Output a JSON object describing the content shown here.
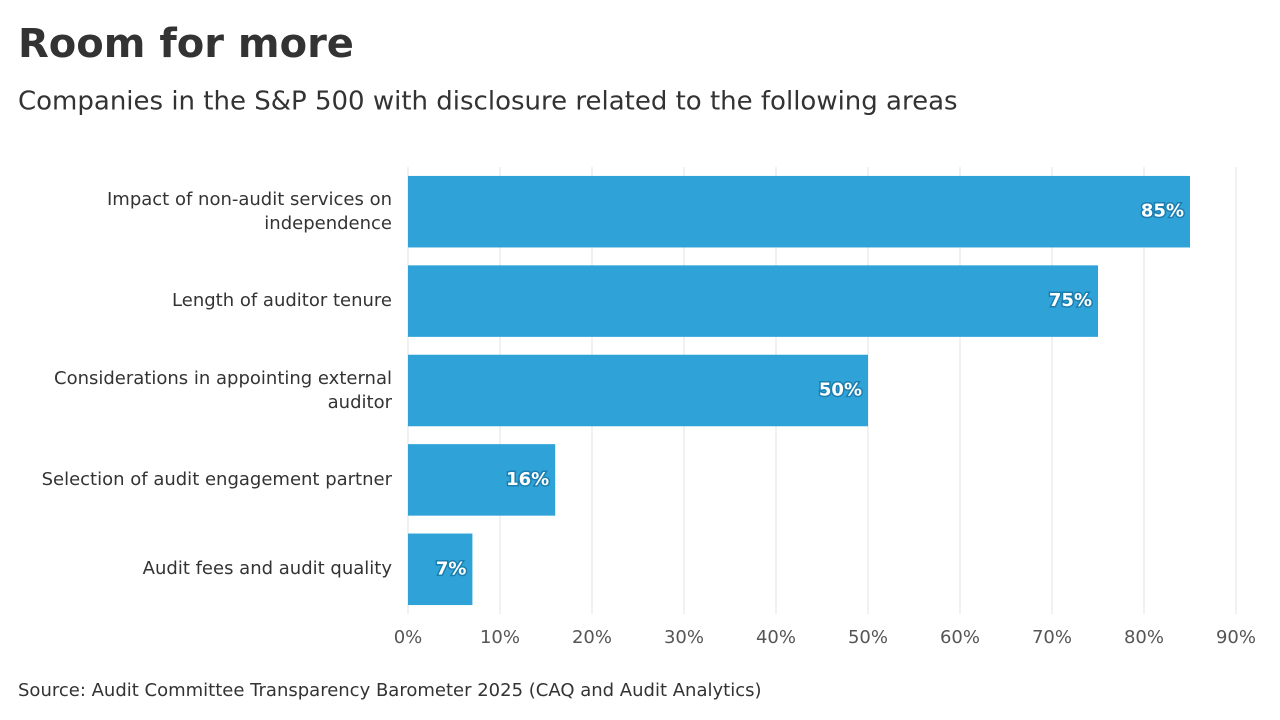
{
  "chart_data": {
    "type": "bar",
    "orientation": "horizontal",
    "title": "Room for more",
    "subtitle": "Companies in the S&P 500 with disclosure related to the following areas",
    "source": "Source: Audit Committee Transparency Barometer 2025 (CAQ and Audit Analytics)",
    "categories": [
      "Impact of non-audit services on independence",
      "Length of auditor tenure",
      "Considerations in appointing external auditor",
      "Selection of audit engagement partner",
      "Audit fees and audit quality"
    ],
    "values": [
      85,
      75,
      50,
      16,
      7
    ],
    "value_labels": [
      "85%",
      "75%",
      "50%",
      "16%",
      "7%"
    ],
    "color": "#2fa3d8",
    "xlim": [
      0,
      90
    ],
    "xticks": [
      {
        "value": 0,
        "label": "0%"
      },
      {
        "value": 10,
        "label": "10%"
      },
      {
        "value": 20,
        "label": "20%"
      },
      {
        "value": 30,
        "label": "30%"
      },
      {
        "value": 40,
        "label": "40%"
      },
      {
        "value": 50,
        "label": "50%"
      },
      {
        "value": 60,
        "label": "60%"
      },
      {
        "value": 70,
        "label": "70%"
      },
      {
        "value": 80,
        "label": "80%"
      },
      {
        "value": 90,
        "label": "90%"
      }
    ],
    "grid": true
  }
}
